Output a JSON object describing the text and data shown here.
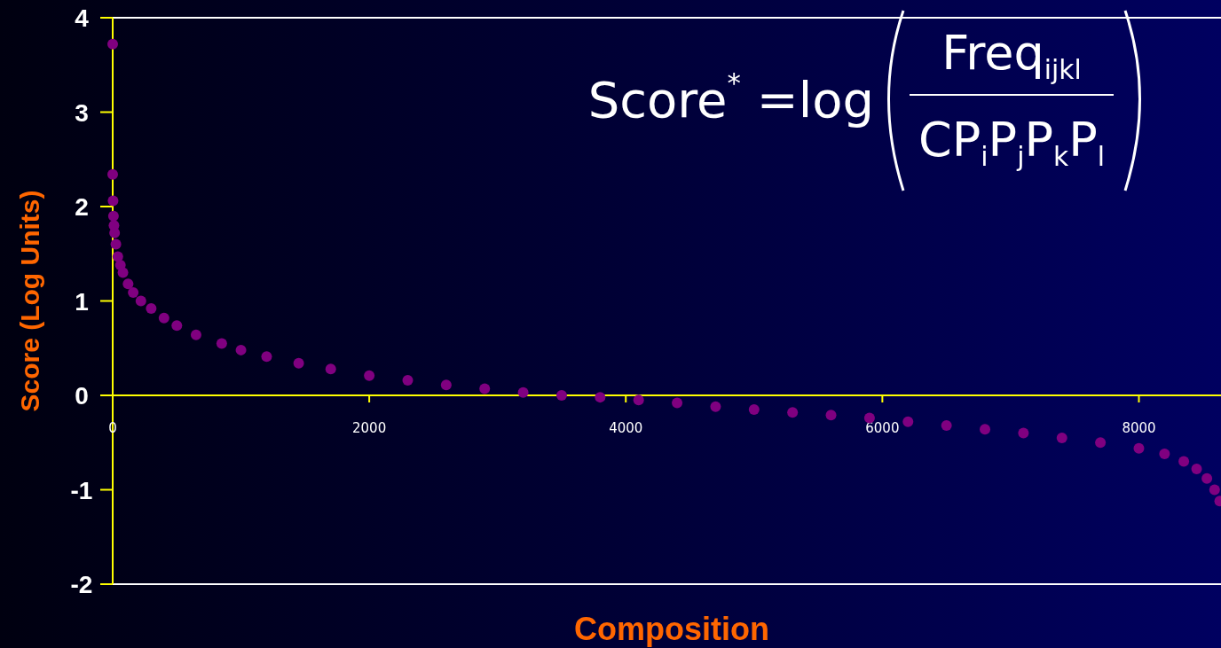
{
  "chart_data": {
    "type": "scatter",
    "xlabel": "Composition",
    "ylabel": "Score (Log Units)",
    "annotations": [
      "Score$^{*}$ =log",
      "Freq$_{ijkl}$",
      "CP$_{i}$P$_{j}$P$_{k}$P$_{l}$"
    ],
    "x": [
      0,
      0,
      3,
      6,
      10,
      15,
      25,
      40,
      60,
      80,
      120,
      160,
      220,
      300,
      400,
      500,
      650,
      850,
      1000,
      1200,
      1450,
      1700,
      2000,
      2300,
      2600,
      2900,
      3200,
      3500,
      3800,
      4100,
      4400,
      4700,
      5000,
      5300,
      5600,
      5900,
      6200,
      6500,
      6800,
      7100,
      7400,
      7700,
      8000,
      8200,
      8350,
      8450,
      8530,
      8590,
      8630
    ],
    "series": [
      {
        "color": "#800080",
        "values": [
          3.72,
          2.34,
          2.06,
          1.9,
          1.8,
          1.72,
          1.6,
          1.47,
          1.38,
          1.3,
          1.18,
          1.09,
          1.0,
          0.92,
          0.82,
          0.74,
          0.64,
          0.55,
          0.48,
          0.41,
          0.34,
          0.28,
          0.21,
          0.16,
          0.11,
          0.07,
          0.03,
          0.0,
          -0.02,
          -0.05,
          -0.08,
          -0.12,
          -0.15,
          -0.18,
          -0.21,
          -0.24,
          -0.28,
          -0.32,
          -0.36,
          -0.4,
          -0.45,
          -0.5,
          -0.56,
          -0.62,
          -0.7,
          -0.78,
          -0.88,
          -1.0,
          -1.12
        ]
      }
    ],
    "xlim": [
      0,
      8640
    ],
    "ylim": [
      -2,
      4
    ],
    "xticks": [
      0,
      2000,
      4000,
      6000,
      8000
    ],
    "yticks": [
      -2,
      -1,
      0,
      1,
      2,
      3,
      4
    ],
    "marker": "circle"
  }
}
